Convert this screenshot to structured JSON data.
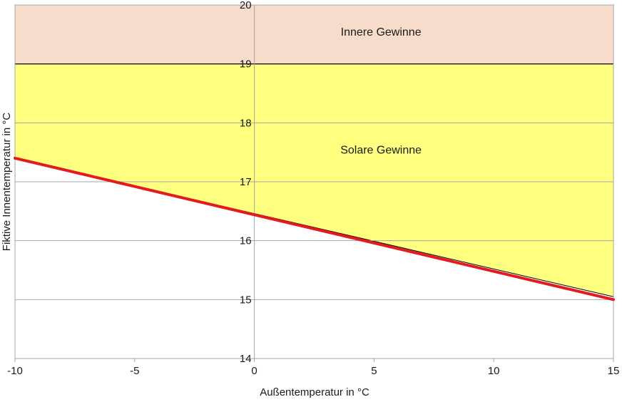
{
  "chart_data": {
    "type": "area",
    "title": "",
    "xlabel": "Außentemperatur  in °C",
    "ylabel": "Fiktive Innentemperatur  in °C",
    "xlim": [
      -10,
      15
    ],
    "ylim": [
      14,
      20
    ],
    "xticks": [
      -10,
      -5,
      0,
      5,
      10,
      15
    ],
    "yticks": [
      14,
      15,
      16,
      17,
      18,
      19,
      20
    ],
    "xtick_labels": [
      "-10",
      "-5",
      "0",
      "5",
      "10",
      "15"
    ],
    "ytick_labels": [
      "14",
      "15",
      "16",
      "17",
      "18",
      "19",
      "20"
    ],
    "grid": "horizontal",
    "series": [
      {
        "name": "Fiktive Innentemperatur",
        "x": [
          -10,
          15
        ],
        "y": [
          17.4,
          15.0
        ],
        "color": "#e41a1c"
      }
    ],
    "areas": [
      {
        "name": "Innere Gewinne",
        "label": "Innere Gewinne",
        "from": [
          {
            "x": -10,
            "y": 19
          },
          {
            "x": 15,
            "y": 19
          }
        ],
        "to": [
          {
            "x": -10,
            "y": 20
          },
          {
            "x": 15,
            "y": 20
          }
        ],
        "color": "#f7dccb"
      },
      {
        "name": "Solare Gewinne",
        "label": "Solare Gewinne",
        "from": [
          {
            "x": -10,
            "y": 17.4
          },
          {
            "x": 15,
            "y": 15.05
          }
        ],
        "to": [
          {
            "x": -10,
            "y": 19
          },
          {
            "x": 15,
            "y": 19
          }
        ],
        "color": "#ffff80"
      }
    ],
    "annotations": [
      {
        "text": "Innere Gewinne",
        "x": 3.8,
        "y": 19.55
      },
      {
        "text": "Solare Gewinne",
        "x": 3.8,
        "y": 17.55
      }
    ],
    "colors": {
      "grid": "#a6a6a6",
      "axis": "#a6a6a6",
      "band_edge": "#000000"
    }
  }
}
